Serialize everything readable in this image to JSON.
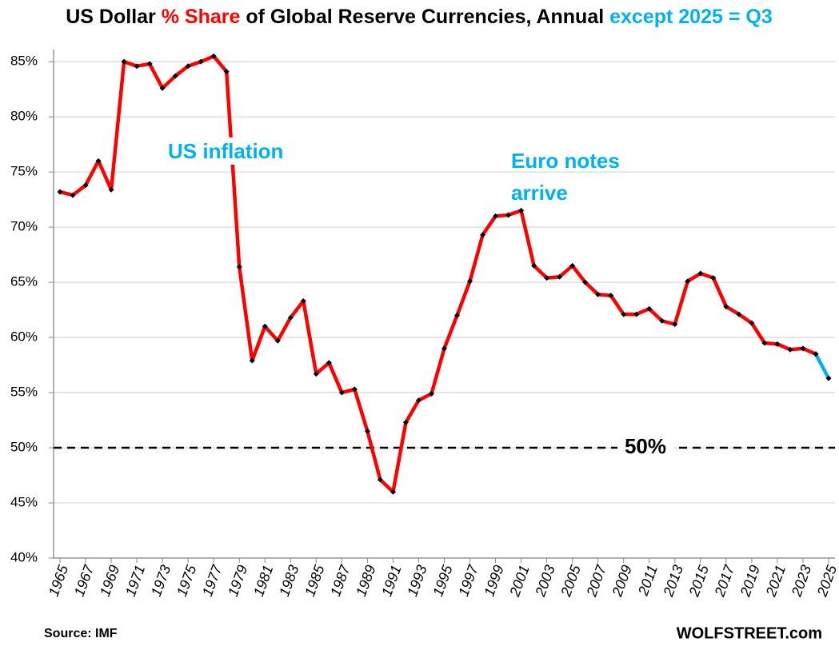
{
  "chart_data": {
    "type": "line",
    "title_parts": [
      {
        "text": "US Dollar ",
        "color": "#000000"
      },
      {
        "text": "% Share",
        "color": "#ff0000"
      },
      {
        "text": " of Global Reserve Currencies, Annual ",
        "color": "#000000"
      },
      {
        "text": "except 2025 = Q3",
        "color": "#00b0f0"
      }
    ],
    "x": [
      1965,
      1966,
      1967,
      1968,
      1969,
      1970,
      1971,
      1972,
      1973,
      1974,
      1975,
      1976,
      1977,
      1978,
      1979,
      1980,
      1981,
      1982,
      1983,
      1984,
      1985,
      1986,
      1987,
      1988,
      1989,
      1990,
      1991,
      1992,
      1993,
      1994,
      1995,
      1996,
      1997,
      1998,
      1999,
      2000,
      2001,
      2002,
      2003,
      2004,
      2005,
      2006,
      2007,
      2008,
      2009,
      2010,
      2011,
      2012,
      2013,
      2014,
      2015,
      2016,
      2017,
      2018,
      2019,
      2020,
      2021,
      2022,
      2023,
      2024,
      2025
    ],
    "series": [
      {
        "color": "#ff0000",
        "values": [
          73.2,
          72.9,
          73.8,
          76.0,
          73.4,
          85.0,
          84.6,
          84.8,
          82.6,
          83.7,
          84.6,
          85.0,
          85.5,
          84.1,
          66.4,
          57.9,
          61.0,
          59.7,
          61.8,
          63.3,
          56.7,
          57.7,
          55.0,
          55.3,
          51.5,
          47.1,
          46.0,
          52.3,
          54.3,
          54.9,
          59.0,
          62.0,
          65.1,
          69.3,
          71.0,
          71.1,
          71.5,
          66.5,
          65.4,
          65.5,
          66.5,
          65.0,
          63.9,
          63.8,
          62.1,
          62.1,
          62.6,
          61.5,
          61.2,
          65.1,
          65.8,
          65.4,
          62.8,
          62.1,
          61.3,
          59.5,
          59.4,
          58.9,
          59.0,
          58.5,
          null
        ]
      },
      {
        "color": "#00b0f0",
        "values": [
          null,
          null,
          null,
          null,
          null,
          null,
          null,
          null,
          null,
          null,
          null,
          null,
          null,
          null,
          null,
          null,
          null,
          null,
          null,
          null,
          null,
          null,
          null,
          null,
          null,
          null,
          null,
          null,
          null,
          null,
          null,
          null,
          null,
          null,
          null,
          null,
          null,
          null,
          null,
          null,
          null,
          null,
          null,
          null,
          null,
          null,
          null,
          null,
          null,
          null,
          null,
          null,
          null,
          null,
          null,
          null,
          null,
          null,
          null,
          58.5,
          56.3
        ]
      }
    ],
    "marker_color": "#000000",
    "xlim": [
      1964.5,
      2025.5
    ],
    "xticks": [
      1965,
      1967,
      1969,
      1971,
      1973,
      1975,
      1977,
      1979,
      1981,
      1983,
      1985,
      1987,
      1989,
      1991,
      1993,
      1995,
      1997,
      1999,
      2001,
      2003,
      2005,
      2007,
      2009,
      2011,
      2013,
      2015,
      2017,
      2019,
      2021,
      2023,
      2025
    ],
    "ylim": [
      40,
      86.1
    ],
    "yticks": [
      {
        "value": 40,
        "label": "40%"
      },
      {
        "value": 45,
        "label": "45%"
      },
      {
        "value": 50,
        "label": "50%"
      },
      {
        "value": 55,
        "label": "55%"
      },
      {
        "value": 60,
        "label": "60%"
      },
      {
        "value": 65,
        "label": "65%"
      },
      {
        "value": 70,
        "label": "70%"
      },
      {
        "value": 75,
        "label": "75%"
      },
      {
        "value": 80,
        "label": "80%"
      },
      {
        "value": 85,
        "label": "85%"
      }
    ],
    "grid": true,
    "reference_line": {
      "value": 50,
      "label": "50%"
    },
    "annotations": [
      {
        "lines": [
          "US inflation"
        ],
        "color": "#00b0f0"
      },
      {
        "lines": [
          "Euro notes",
          "arrive"
        ],
        "color": "#00b0f0"
      }
    ],
    "source": "Source: IMF",
    "credit": "WOLFSTREET.com"
  }
}
